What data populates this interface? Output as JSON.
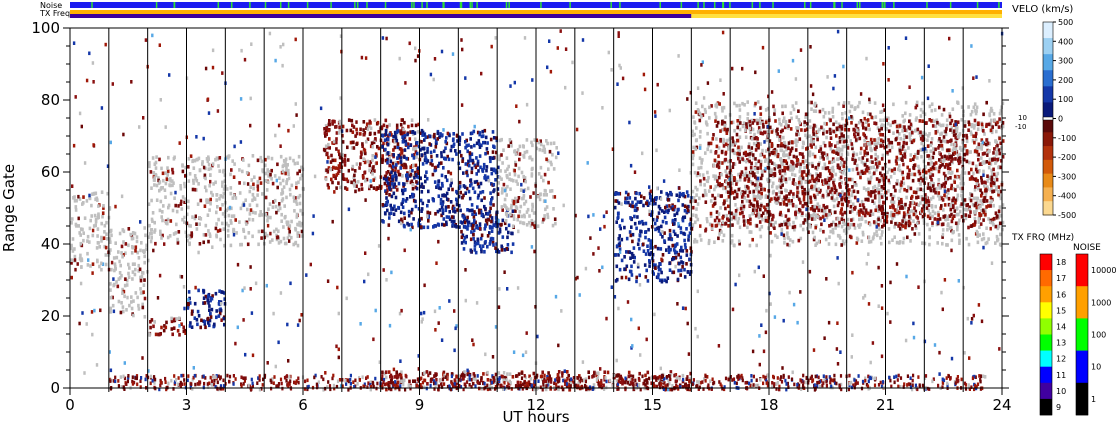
{
  "chart_data": {
    "type": "heatmap",
    "xlabel": "UT hours",
    "ylabel": "Range Gate",
    "xlim": [
      0,
      24
    ],
    "ylim": [
      0,
      100
    ],
    "x_ticks": [
      "0",
      "3",
      "6",
      "9",
      "12",
      "15",
      "18",
      "21",
      "24"
    ],
    "y_ticks": [
      "0",
      "20",
      "40",
      "60",
      "80",
      "100"
    ],
    "hour_lines": [
      1,
      2,
      3,
      4,
      5,
      6,
      7,
      8,
      9,
      10,
      11,
      12,
      13,
      14,
      15,
      16,
      17,
      18,
      19,
      20,
      21,
      22,
      23
    ],
    "top_bars": {
      "noise_label": "Noise",
      "txfreq_label": "TX Freq",
      "txfreq_switch_hour": 16
    },
    "regions": [
      {
        "type": "ground",
        "x": [
          0,
          1
        ],
        "y": [
          33,
          55
        ]
      },
      {
        "type": "ground",
        "x": [
          1,
          2
        ],
        "y": [
          20,
          45
        ]
      },
      {
        "type": "neg",
        "x": [
          2,
          3
        ],
        "y": [
          15,
          20
        ]
      },
      {
        "type": "pos",
        "x": [
          3,
          4
        ],
        "y": [
          17,
          28
        ]
      },
      {
        "type": "ground",
        "x": [
          2,
          6
        ],
        "y": [
          40,
          65
        ]
      },
      {
        "type": "neg",
        "x": [
          6.5,
          9
        ],
        "y": [
          55,
          75
        ]
      },
      {
        "type": "pos",
        "x": [
          8,
          11
        ],
        "y": [
          45,
          72
        ]
      },
      {
        "type": "pos",
        "x": [
          10,
          11.5
        ],
        "y": [
          38,
          50
        ]
      },
      {
        "type": "ground",
        "x": [
          11,
          12.5
        ],
        "y": [
          45,
          70
        ]
      },
      {
        "type": "pos",
        "x": [
          14,
          16
        ],
        "y": [
          30,
          55
        ]
      },
      {
        "type": "ground",
        "x": [
          16,
          24
        ],
        "y": [
          40,
          80
        ]
      },
      {
        "type": "neg",
        "x": [
          16.5,
          24
        ],
        "y": [
          45,
          75
        ]
      },
      {
        "type": "neg",
        "x": [
          8,
          16
        ],
        "y": [
          0,
          5
        ]
      }
    ]
  },
  "velocity_scale": {
    "title": "VELO (km/s)",
    "ticks": [
      "500",
      "400",
      "300",
      "200",
      "100",
      "0",
      "-100",
      "-200",
      "-300",
      "-400",
      "-500"
    ],
    "side_labels": [
      "10",
      "-10"
    ],
    "colors_pos": [
      "#dcefff",
      "#9cd0f2",
      "#57a8e6",
      "#2a6ed0",
      "#1437a8",
      "#0a1a7a"
    ],
    "colors_neg": [
      "#5a0a0a",
      "#8a1808",
      "#b3320c",
      "#d25a0a",
      "#e88a18",
      "#f5b050",
      "#fbd890"
    ]
  },
  "txfreq_scale": {
    "title": "TX FRQ (MHz)",
    "ticks": [
      "18",
      "17",
      "16",
      "15",
      "14",
      "13",
      "12",
      "11",
      "10",
      "9"
    ],
    "colors": [
      "#ff0000",
      "#ff6a00",
      "#ffa000",
      "#ffff00",
      "#90ff00",
      "#00ff00",
      "#00ffff",
      "#0000ff",
      "#4000a0",
      "#000000"
    ]
  },
  "noise_scale": {
    "title": "NOISE",
    "ticks": [
      "10000",
      "1000",
      "100",
      "10",
      "1"
    ],
    "colors": [
      "#ff0000",
      "#ffa000",
      "#00ff00",
      "#0000ff",
      "#000000"
    ]
  },
  "colors": {
    "ground": "#bfbfbf",
    "noise_bar": "#1c1cf0",
    "noise_spike": "#30e030",
    "txfreq_a": "#ffb000",
    "txfreq_b": "#ffe040",
    "txfreq_purple": "#3c009a"
  }
}
